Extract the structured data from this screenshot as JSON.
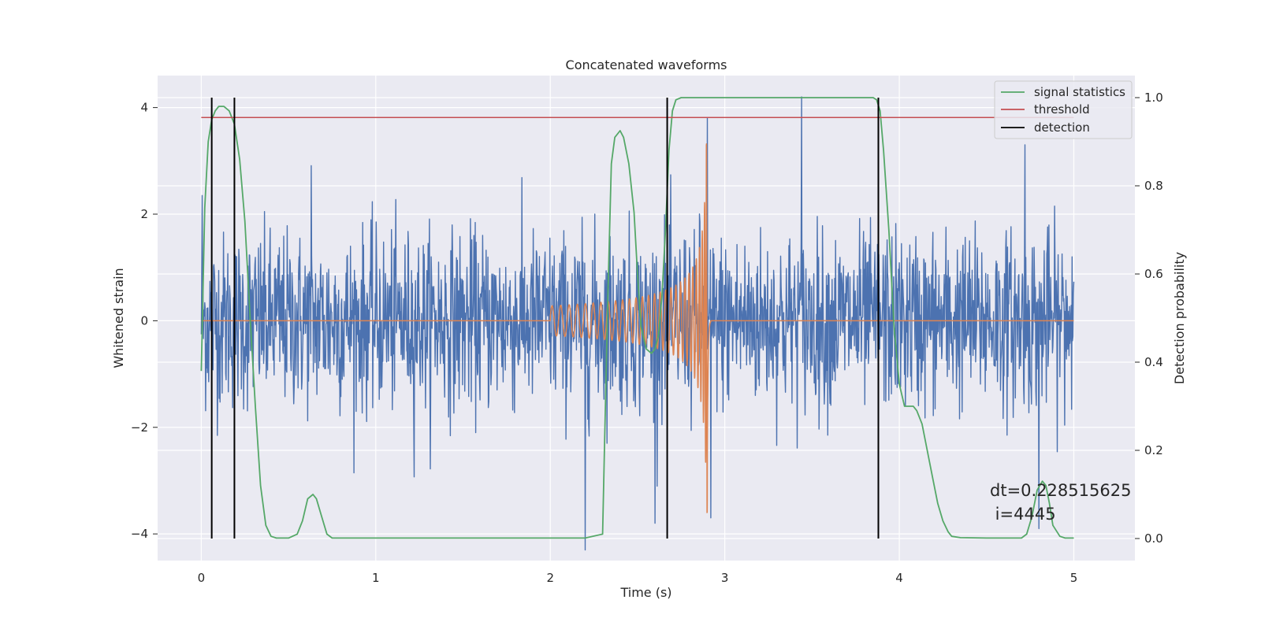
{
  "chart_data": {
    "type": "line",
    "title": "Concatenated waveforms",
    "xlabel": "Time (s)",
    "ylabel": "Whitened strain",
    "ylabel_right": "Detection probability",
    "xlim": [
      -0.25,
      5.35
    ],
    "ylim": [
      -4.5,
      4.6
    ],
    "ylim_right": [
      -0.05,
      1.05
    ],
    "x_ticks": [
      0,
      1,
      2,
      3,
      4,
      5
    ],
    "x_tick_labels": [
      "0",
      "1",
      "2",
      "3",
      "4",
      "5"
    ],
    "y_ticks": [
      -4,
      -2,
      0,
      2,
      4
    ],
    "y_tick_labels": [
      "−4",
      "−2",
      "0",
      "2",
      "4"
    ],
    "y_right_ticks": [
      0.0,
      0.2,
      0.4,
      0.6,
      0.8,
      1.0
    ],
    "y_right_tick_labels": [
      "0.0",
      "0.2",
      "0.4",
      "0.6",
      "0.8",
      "1.0"
    ],
    "grid": true,
    "legend_position": "top-right",
    "colors": {
      "strain": "#4c72b0",
      "template": "#dd8452",
      "signal_statistics": "#55a868",
      "threshold": "#c44e52",
      "detection": "#000000",
      "axes_background": "#eaeaf2",
      "grid": "#ffffff"
    },
    "series": [
      {
        "key": "strain",
        "axis": "left",
        "x_range": [
          0,
          5
        ],
        "sample_step": 0.0025,
        "typical_amplitude": 1.0,
        "extremes": [
          {
            "x": 0.005,
            "y": 2.35
          },
          {
            "x": 0.63,
            "y": 2.91
          },
          {
            "x": 1.22,
            "y": -2.93
          },
          {
            "x": 2.2,
            "y": -4.3
          },
          {
            "x": 2.6,
            "y": -3.8
          },
          {
            "x": 2.9,
            "y": 3.8
          },
          {
            "x": 2.92,
            "y": -3.7
          },
          {
            "x": 3.44,
            "y": 4.2
          },
          {
            "x": 4.72,
            "y": 3.3
          },
          {
            "x": 4.8,
            "y": -3.9
          },
          {
            "x": 4.99,
            "y": 1.2
          }
        ]
      },
      {
        "key": "template",
        "axis": "left",
        "flat_ranges": [
          [
            0,
            2.0
          ],
          [
            2.92,
            5
          ]
        ],
        "chirp": {
          "start": 2.0,
          "merger": 2.9,
          "ringdown_end": 2.92,
          "amplitude_start": 0.28,
          "amplitude_peak": 3.6,
          "frequency_start": 20,
          "peak_value": 3.3,
          "trough_value": -3.6
        }
      },
      {
        "name": "signal statistics",
        "axis": "right",
        "x": [
          0,
          0.02,
          0.04,
          0.06,
          0.08,
          0.1,
          0.13,
          0.16,
          0.19,
          0.22,
          0.25,
          0.28,
          0.31,
          0.34,
          0.37,
          0.4,
          0.43,
          0.46,
          0.5,
          0.55,
          0.58,
          0.61,
          0.64,
          0.66,
          0.69,
          0.72,
          0.75,
          0.8,
          1.0,
          1.5,
          2.0,
          2.2,
          2.3,
          2.31,
          2.33,
          2.35,
          2.37,
          2.4,
          2.42,
          2.45,
          2.48,
          2.5,
          2.52,
          2.55,
          2.58,
          2.6,
          2.62,
          2.64,
          2.66,
          2.68,
          2.7,
          2.72,
          2.75,
          2.8,
          3.0,
          3.4,
          3.8,
          3.85,
          3.87,
          3.89,
          3.91,
          3.94,
          3.97,
          4.0,
          4.03,
          4.08,
          4.1,
          4.13,
          4.16,
          4.19,
          4.22,
          4.25,
          4.28,
          4.3,
          4.35,
          4.5,
          4.7,
          4.73,
          4.76,
          4.79,
          4.82,
          4.84,
          4.86,
          4.88,
          4.92,
          4.95,
          5.0
        ],
        "values": [
          0.38,
          0.75,
          0.9,
          0.95,
          0.97,
          0.98,
          0.98,
          0.97,
          0.94,
          0.86,
          0.72,
          0.5,
          0.3,
          0.12,
          0.03,
          0.005,
          0.001,
          0.001,
          0.001,
          0.01,
          0.04,
          0.09,
          0.1,
          0.09,
          0.05,
          0.01,
          0.001,
          0.001,
          0.001,
          0.001,
          0.001,
          0.001,
          0.01,
          0.2,
          0.55,
          0.85,
          0.91,
          0.925,
          0.91,
          0.85,
          0.74,
          0.6,
          0.48,
          0.43,
          0.42,
          0.43,
          0.46,
          0.55,
          0.7,
          0.88,
          0.97,
          0.995,
          1.0,
          1.0,
          1.0,
          1.0,
          1.0,
          1.0,
          0.995,
          0.97,
          0.88,
          0.7,
          0.48,
          0.35,
          0.3,
          0.3,
          0.29,
          0.26,
          0.2,
          0.14,
          0.08,
          0.04,
          0.015,
          0.005,
          0.002,
          0.001,
          0.001,
          0.01,
          0.05,
          0.11,
          0.13,
          0.12,
          0.08,
          0.03,
          0.005,
          0.001,
          0.001
        ]
      },
      {
        "name": "threshold",
        "axis": "right",
        "x": [
          0,
          5
        ],
        "values": [
          0.955,
          0.955
        ]
      },
      {
        "name": "detection",
        "axis": "right",
        "x_positions": [
          0.06,
          0.19,
          2.67,
          3.88
        ],
        "ymin": 0.0,
        "ymax": 1.0
      }
    ],
    "legend": [
      "signal statistics",
      "threshold",
      "detection"
    ],
    "annotations": [
      {
        "text": "dt=0.228515625",
        "x": 4.5,
        "y": -3.45
      },
      {
        "text": " i=4445",
        "x": 4.5,
        "y": -3.8
      }
    ]
  }
}
